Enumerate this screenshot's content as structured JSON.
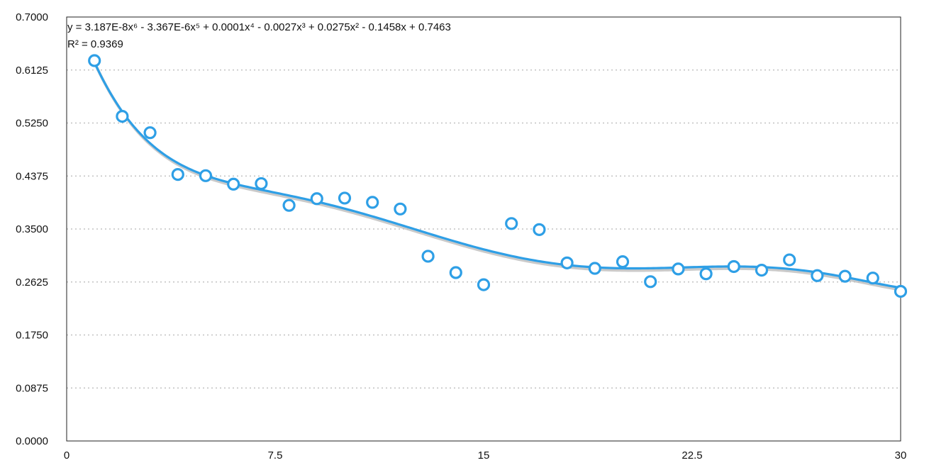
{
  "chart_data": {
    "type": "scatter",
    "title": "",
    "xlabel": "",
    "ylabel": "",
    "xlim": [
      0,
      30
    ],
    "ylim": [
      0,
      0.7
    ],
    "x_ticks": [
      0,
      7.5,
      15,
      22.5,
      30
    ],
    "x_tick_labels": [
      "0",
      "7.5",
      "15",
      "22.5",
      "30"
    ],
    "y_ticks": [
      0,
      0.0875,
      0.175,
      0.2625,
      0.35,
      0.4375,
      0.525,
      0.6125,
      0.7
    ],
    "y_tick_labels": [
      "0.0000",
      "0.0875",
      "0.1750",
      "0.2625",
      "0.3500",
      "0.4375",
      "0.5250",
      "0.6125",
      "0.7000"
    ],
    "grid": "horizontal dotted",
    "marker_color": "#2e9fe6",
    "trendline_color": "#2e9fe6",
    "series": [
      {
        "x": [
          1,
          2,
          3,
          4,
          5,
          6,
          7,
          8,
          9,
          10,
          11,
          12,
          13,
          14,
          15,
          16,
          17,
          18,
          19,
          20,
          21,
          22,
          23,
          24,
          25,
          26,
          27,
          28,
          29,
          30
        ],
        "y": [
          0.628,
          0.536,
          0.509,
          0.44,
          0.438,
          0.424,
          0.425,
          0.389,
          0.4,
          0.401,
          0.394,
          0.383,
          0.305,
          0.278,
          0.258,
          0.359,
          0.349,
          0.294,
          0.285,
          0.296,
          0.263,
          0.284,
          0.276,
          0.288,
          0.282,
          0.299,
          0.273,
          0.272,
          0.269,
          0.247
        ]
      }
    ],
    "trendline": {
      "type": "polynomial",
      "order": 6,
      "coefficients": [
        0.7463,
        -0.1458,
        0.0275,
        -0.0027,
        0.0001,
        -3.367e-06,
        3.187e-08
      ],
      "x_range": [
        1,
        30
      ],
      "equation": "y = 3.187E-8x⁶ - 3.367E-6x⁵ + 0.0001x⁴ - 0.0027x³ + 0.0275x² - 0.1458x + 0.7463",
      "r_squared": "R² = 0.9369"
    }
  }
}
